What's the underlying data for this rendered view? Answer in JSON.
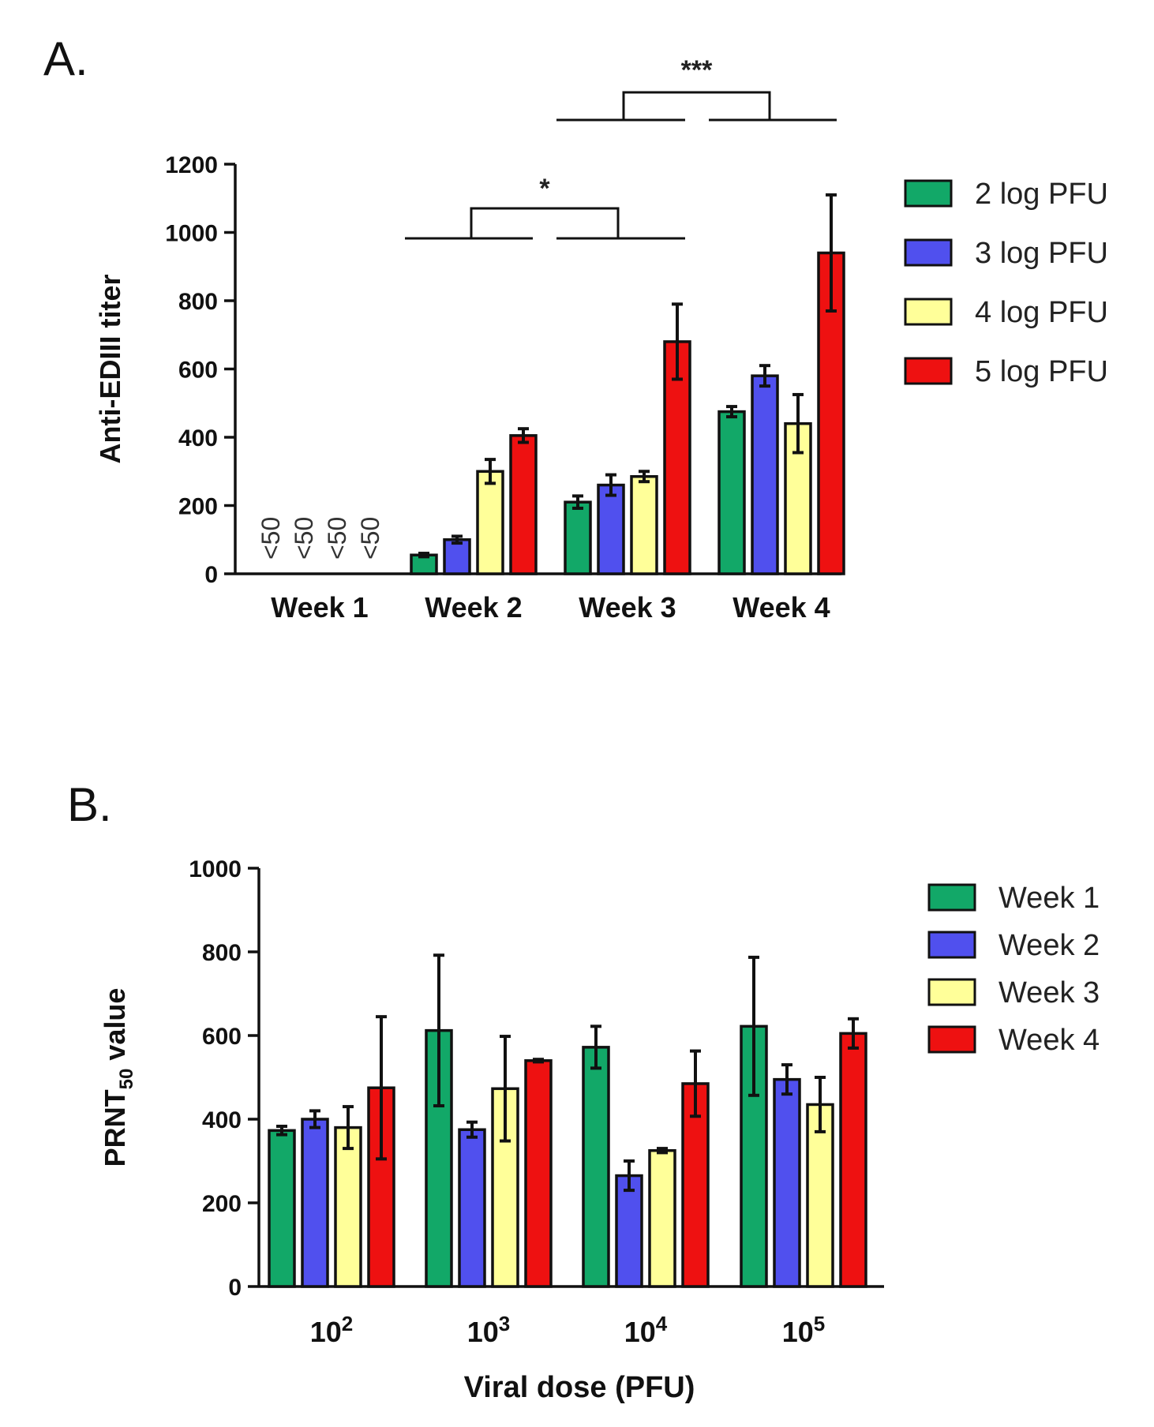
{
  "chart_data": [
    {
      "panel": "A.",
      "type": "bar",
      "ylabel": "Anti-EDIII titer",
      "xlabel": "",
      "ylim": [
        0,
        1200
      ],
      "yticks": [
        "0",
        "200",
        "400",
        "600",
        "800",
        "1000",
        "1200"
      ],
      "categories": [
        "Week 1",
        "Week 2",
        "Week 3",
        "Week 4"
      ],
      "series": [
        {
          "name": "2 log PFU",
          "color": "#12a868",
          "values": [
            null,
            55,
            210,
            475
          ],
          "errors": [
            null,
            5,
            18,
            15
          ]
        },
        {
          "name": "3 log PFU",
          "color": "#5050ee",
          "values": [
            null,
            100,
            260,
            580
          ],
          "errors": [
            null,
            10,
            30,
            30
          ]
        },
        {
          "name": "4 log PFU",
          "color": "#ffff99",
          "values": [
            null,
            300,
            285,
            440
          ],
          "errors": [
            null,
            35,
            15,
            85
          ]
        },
        {
          "name": "5 log PFU",
          "color": "#ee1111",
          "values": [
            null,
            405,
            680,
            940
          ],
          "errors": [
            null,
            20,
            110,
            170
          ]
        }
      ],
      "below_detection_label": "<50",
      "significance": [
        {
          "label": "*",
          "from": "Week 2",
          "to": "Week 3"
        },
        {
          "label": "***",
          "from": "Week 3",
          "to": "Week 4"
        }
      ]
    },
    {
      "panel": "B.",
      "type": "bar",
      "ylabel": "PRNT",
      "ylabel_sub": "50",
      "ylabel_suffix": " value",
      "xlabel": "Viral dose (PFU)",
      "ylim": [
        0,
        1000
      ],
      "yticks": [
        "0",
        "200",
        "400",
        "600",
        "800",
        "1000"
      ],
      "categories": [
        {
          "base": "10",
          "exp": "2"
        },
        {
          "base": "10",
          "exp": "3"
        },
        {
          "base": "10",
          "exp": "4"
        },
        {
          "base": "10",
          "exp": "5"
        }
      ],
      "series": [
        {
          "name": "Week 1",
          "color": "#12a868",
          "values": [
            373,
            612,
            572,
            622
          ],
          "errors": [
            10,
            180,
            50,
            165
          ]
        },
        {
          "name": "Week 2",
          "color": "#5050ee",
          "values": [
            400,
            375,
            265,
            495
          ],
          "errors": [
            20,
            18,
            35,
            35
          ]
        },
        {
          "name": "Week 3",
          "color": "#ffff99",
          "values": [
            380,
            473,
            325,
            435
          ],
          "errors": [
            50,
            125,
            5,
            65
          ]
        },
        {
          "name": "Week 4",
          "color": "#ee1111",
          "values": [
            475,
            540,
            485,
            605
          ],
          "errors": [
            170,
            3,
            78,
            35
          ]
        }
      ]
    }
  ]
}
